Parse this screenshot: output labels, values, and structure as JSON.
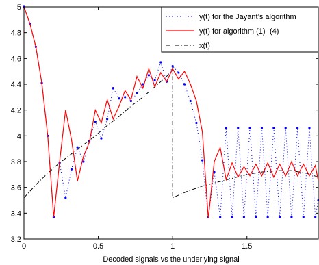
{
  "chart_data": {
    "type": "line",
    "title": "",
    "xlabel": "Decoded signals vs the underlying signal",
    "ylabel": "",
    "xlim": [
      0,
      1.98
    ],
    "ylim": [
      3.2,
      5.0
    ],
    "grid": false,
    "legend_position": "top-right",
    "x_ticks": [
      0,
      0.5,
      1,
      1.5
    ],
    "x_tick_labels": [
      "0",
      "0.5",
      "1",
      "1.5"
    ],
    "y_ticks": [
      3.2,
      3.4,
      3.6,
      3.8,
      4.0,
      4.2,
      4.4,
      4.6,
      4.8,
      5.0
    ],
    "y_tick_labels": [
      "3.2",
      "3.4",
      "3.6",
      "3.8",
      "4",
      "4.2",
      "4.4",
      "4.6",
      "4.8",
      "5"
    ],
    "series": [
      {
        "name": "y(t) for the Jayant’s algorithm",
        "style": "dotted-with-markers",
        "color": "#0000ff",
        "x": [
          0,
          0.04,
          0.08,
          0.12,
          0.16,
          0.2,
          0.24,
          0.28,
          0.32,
          0.36,
          0.4,
          0.44,
          0.48,
          0.52,
          0.56,
          0.6,
          0.64,
          0.68,
          0.72,
          0.76,
          0.8,
          0.84,
          0.88,
          0.92,
          0.96,
          1.0,
          1.04,
          1.08,
          1.12,
          1.16,
          1.2,
          1.24,
          1.28,
          1.32,
          1.36,
          1.4,
          1.44,
          1.48,
          1.52,
          1.56,
          1.6,
          1.64,
          1.68,
          1.72,
          1.76,
          1.8,
          1.84,
          1.88,
          1.92,
          1.96,
          1.98
        ],
        "y": [
          5.0,
          4.87,
          4.69,
          4.41,
          4.0,
          3.37,
          3.79,
          3.52,
          3.74,
          3.91,
          3.8,
          3.96,
          4.11,
          3.98,
          4.13,
          4.37,
          4.29,
          4.3,
          4.27,
          4.33,
          4.4,
          4.47,
          4.43,
          4.57,
          4.42,
          4.54,
          4.49,
          4.4,
          4.27,
          4.1,
          3.81,
          3.37,
          3.72,
          3.37,
          4.06,
          3.37,
          4.06,
          3.37,
          4.06,
          3.37,
          4.06,
          3.37,
          4.06,
          3.37,
          4.06,
          3.37,
          4.06,
          3.37,
          4.06,
          3.37,
          3.5
        ]
      },
      {
        "name": "y(t) for algorithm (1)−(4)",
        "style": "solid",
        "color": "#ff0000",
        "x": [
          0,
          0.04,
          0.08,
          0.12,
          0.16,
          0.2,
          0.24,
          0.28,
          0.32,
          0.36,
          0.4,
          0.44,
          0.48,
          0.52,
          0.56,
          0.6,
          0.64,
          0.68,
          0.72,
          0.76,
          0.8,
          0.84,
          0.88,
          0.92,
          0.96,
          1.0,
          1.04,
          1.08,
          1.12,
          1.16,
          1.2,
          1.24,
          1.28,
          1.32,
          1.36,
          1.4,
          1.44,
          1.48,
          1.52,
          1.56,
          1.6,
          1.64,
          1.68,
          1.72,
          1.76,
          1.8,
          1.84,
          1.88,
          1.92,
          1.96,
          1.98
        ],
        "y": [
          5.0,
          4.87,
          4.69,
          4.41,
          4.0,
          3.37,
          3.8,
          4.2,
          3.97,
          3.65,
          3.84,
          3.95,
          4.2,
          4.1,
          4.28,
          4.13,
          4.23,
          4.35,
          4.28,
          4.46,
          4.37,
          4.52,
          4.38,
          4.49,
          4.42,
          4.52,
          4.44,
          4.5,
          4.4,
          4.27,
          4.03,
          3.36,
          3.8,
          3.91,
          3.66,
          3.79,
          3.68,
          3.76,
          3.69,
          3.78,
          3.69,
          3.79,
          3.68,
          3.78,
          3.69,
          3.8,
          3.69,
          3.78,
          3.69,
          3.77,
          3.65
        ]
      },
      {
        "name": "x(t)",
        "style": "dash-dot",
        "color": "#000000",
        "x": [
          0,
          0.08,
          0.16,
          0.24,
          0.32,
          0.4,
          0.48,
          0.56,
          0.64,
          0.72,
          0.8,
          0.88,
          0.96,
          1.0,
          1.0,
          1.1,
          1.2,
          1.3,
          1.4,
          1.5,
          1.6,
          1.7,
          1.8,
          1.9,
          1.98
        ],
        "y": [
          3.52,
          3.62,
          3.71,
          3.79,
          3.86,
          3.93,
          4.0,
          4.08,
          4.15,
          4.23,
          4.3,
          4.38,
          4.46,
          4.52,
          3.52,
          3.57,
          3.61,
          3.64,
          3.67,
          3.7,
          3.72,
          3.73,
          3.73,
          3.71,
          3.68
        ]
      }
    ]
  }
}
